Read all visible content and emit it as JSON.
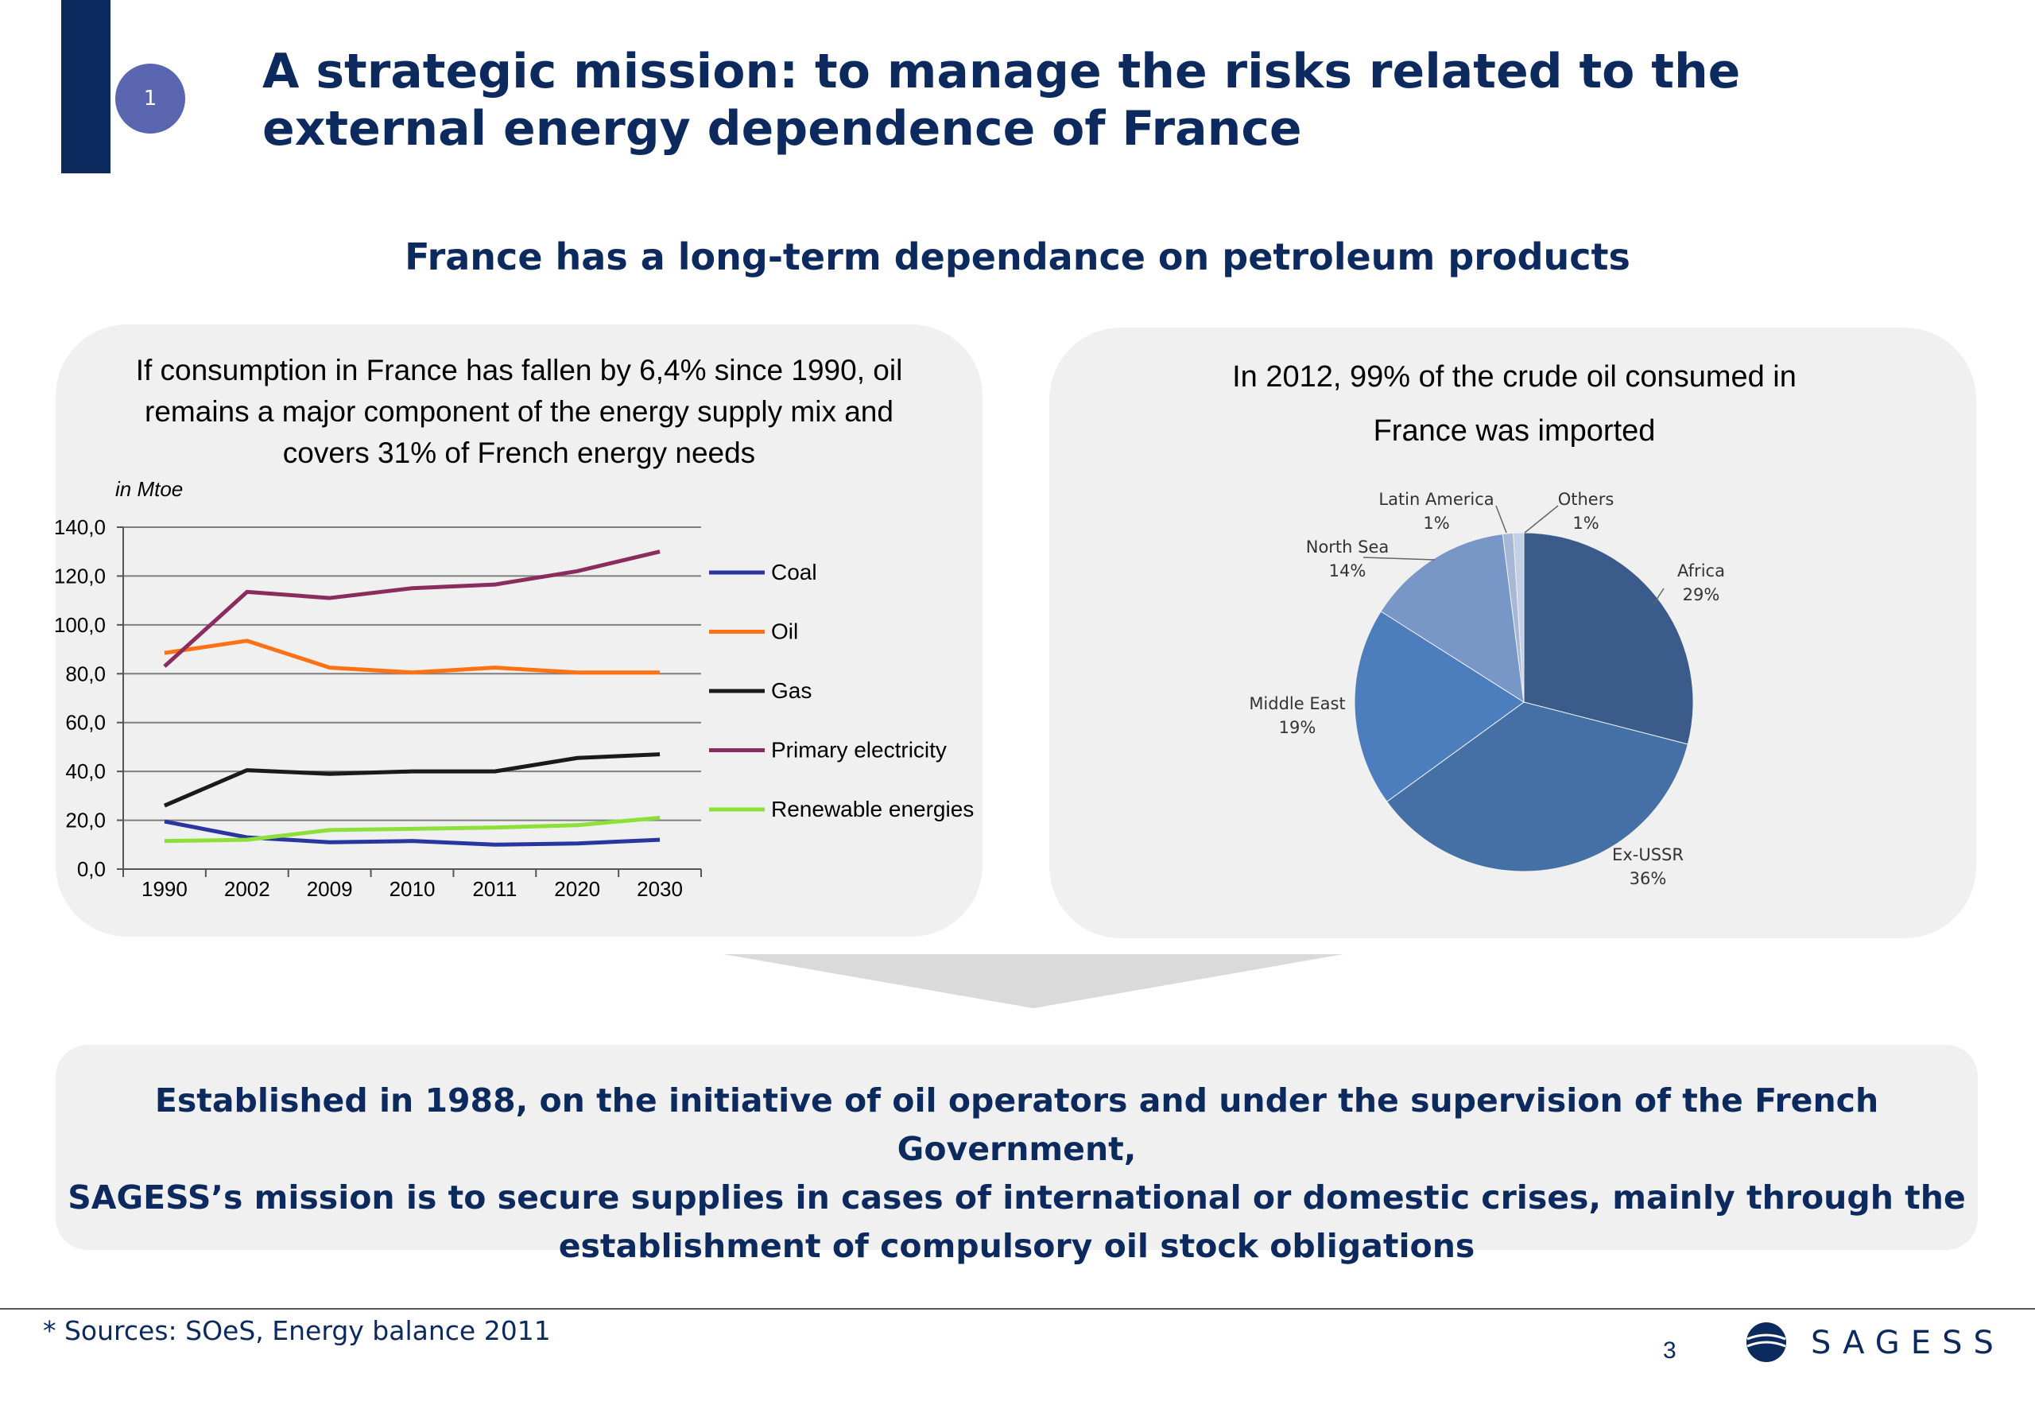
{
  "header": {
    "badge": "1",
    "title_line1": "A strategic mission: to manage the risks related to the",
    "title_line2": "external energy dependence of France",
    "subtitle": "France has a long-term dependance on petroleum products",
    "accent_color": "#0d2a5e"
  },
  "left_panel": {
    "text_line1": "If consumption in France has fallen by 6,4% since 1990, oil",
    "text_line2": "remains a major component of the energy supply mix and",
    "text_line3": "covers 31% of French energy needs",
    "unit": "in Mtoe"
  },
  "right_panel": {
    "text_line1": "In 2012, 99% of the crude oil consumed in",
    "text_line2": "France was imported"
  },
  "chart_data": [
    {
      "type": "line",
      "title": "",
      "xlabel": "",
      "ylabel": "in Mtoe",
      "ylim": [
        0,
        140
      ],
      "yticks": [
        "0,0",
        "20,0",
        "40,0",
        "60,0",
        "80,0",
        "100,0",
        "120,0",
        "140,0"
      ],
      "categories": [
        "1990",
        "2002",
        "2009",
        "2010",
        "2011",
        "2020",
        "2030"
      ],
      "grid": true,
      "legend": "right",
      "series": [
        {
          "name": "Coal",
          "color": "#2a36a0",
          "values": [
            19.5,
            13,
            11,
            11.5,
            10,
            10.5,
            12
          ]
        },
        {
          "name": "Oil",
          "color": "#ff7214",
          "values": [
            88.5,
            93.5,
            82.5,
            80.5,
            82.5,
            80.5,
            80.5
          ]
        },
        {
          "name": "Gas",
          "color": "#1a1a1a",
          "values": [
            26,
            40.5,
            39,
            40,
            40,
            45.5,
            47
          ]
        },
        {
          "name": "Primary electricity",
          "color": "#8b2c5e",
          "values": [
            83,
            113.5,
            111,
            115,
            116.5,
            122,
            130
          ]
        },
        {
          "name": "Renewable energies",
          "color": "#8de03a",
          "values": [
            11.5,
            12,
            16,
            16.5,
            17,
            18,
            21
          ]
        }
      ]
    },
    {
      "type": "pie",
      "title": "",
      "legend": "none",
      "slices": [
        {
          "label": "Africa",
          "pct_text": "29%",
          "value": 29,
          "color": "#3b5c8b"
        },
        {
          "label": "Ex-USSR",
          "pct_text": "36%",
          "value": 36,
          "color": "#4470a6"
        },
        {
          "label": "Middle East",
          "pct_text": "19%",
          "value": 19,
          "color": "#4c7dbd"
        },
        {
          "label": "North Sea",
          "pct_text": "14%",
          "value": 14,
          "color": "#7896c6"
        },
        {
          "label": "Latin America",
          "pct_text": "1%",
          "value": 1,
          "color": "#a7b8d6"
        },
        {
          "label": "Others",
          "pct_text": "1%",
          "value": 1,
          "color": "#c2cfe4"
        }
      ]
    }
  ],
  "bottom": {
    "line1": "Established in 1988, on the initiative of oil operators and under the supervision of the French Government,",
    "line2": "SAGESS’s mission is to secure supplies in cases of international or domestic crises, mainly through the",
    "line3": "establishment of compulsory oil stock obligations"
  },
  "footer": {
    "source": "* Sources: SOeS, Energy balance 2011",
    "page_number": "3",
    "logo_text": "SAGESS",
    "logo_icon": "globe-icon"
  }
}
